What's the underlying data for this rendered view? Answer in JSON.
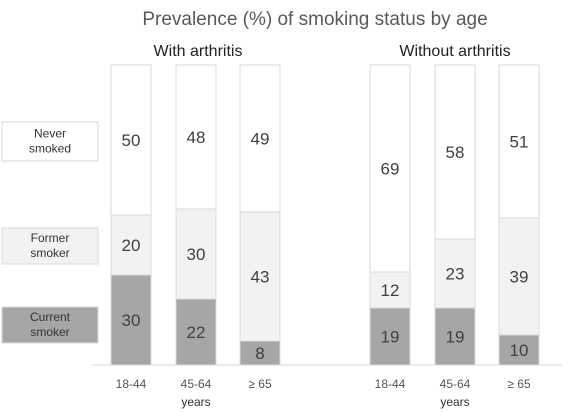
{
  "chart_data": {
    "type": "bar",
    "stacked": true,
    "percent": true,
    "title": "Prevalence (%) of smoking status by age",
    "xlabel": "years",
    "categories": [
      "18-44",
      "45-64",
      "≥ 65"
    ],
    "groups": [
      {
        "name": "With arthritis",
        "series": [
          {
            "name": "Current smoker",
            "values": [
              30,
              22,
              8
            ]
          },
          {
            "name": "Former smoker",
            "values": [
              20,
              30,
              43
            ]
          },
          {
            "name": "Never smoked",
            "values": [
              50,
              48,
              49
            ]
          }
        ]
      },
      {
        "name": "Without arthritis",
        "series": [
          {
            "name": "Current smoker",
            "values": [
              19,
              19,
              10
            ]
          },
          {
            "name": "Former smoker",
            "values": [
              12,
              23,
              39
            ]
          },
          {
            "name": "Never smoked",
            "values": [
              69,
              58,
              51
            ]
          }
        ]
      }
    ],
    "legend": [
      {
        "lines": [
          "Never",
          "smoked"
        ],
        "color": "#ffffff"
      },
      {
        "lines": [
          "Former",
          "smoker"
        ],
        "color": "#f2f2f2"
      },
      {
        "lines": [
          "Current",
          "smoker"
        ],
        "color": "#a6a6a6"
      }
    ],
    "colors": {
      "Current smoker": "#a6a6a6",
      "Former smoker": "#f2f2f2",
      "Never smoked": "#ffffff",
      "border": "#d9d9d9",
      "axis": "#d9d9d9"
    },
    "ylim": [
      0,
      100
    ],
    "legend_position": "left"
  }
}
